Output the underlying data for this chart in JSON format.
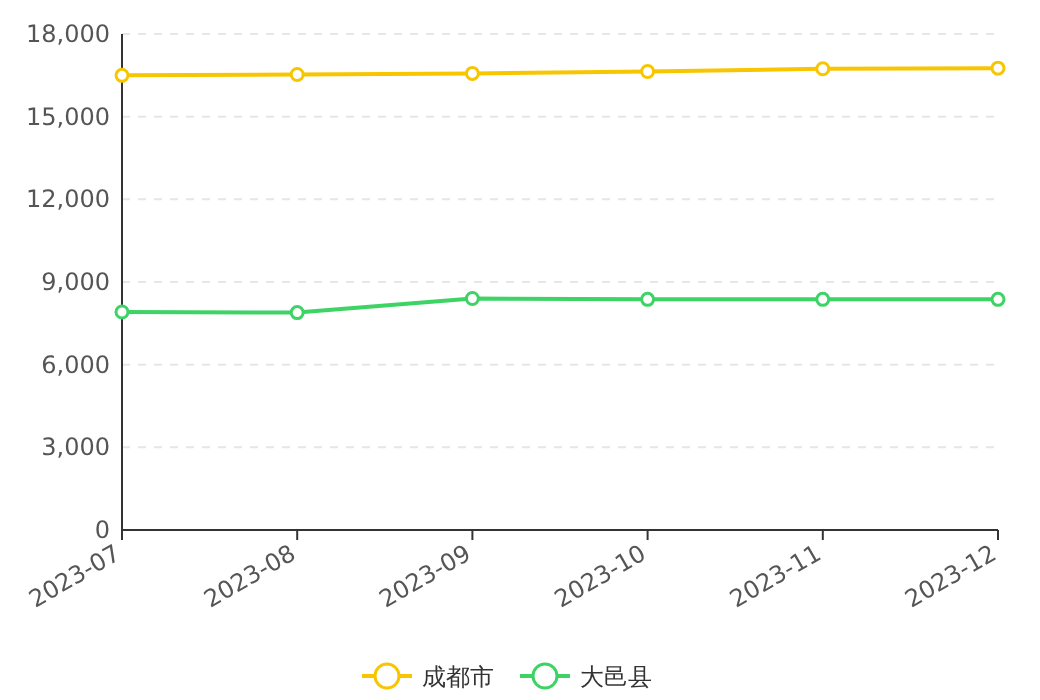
{
  "chart_data": {
    "type": "line",
    "categories": [
      "2023-07",
      "2023-08",
      "2023-09",
      "2023-10",
      "2023-11",
      "2023-12"
    ],
    "series": [
      {
        "name": "成都市",
        "color": "#f7c600",
        "values": [
          16500,
          16530,
          16570,
          16640,
          16740,
          16760
        ]
      },
      {
        "name": "大邑县",
        "color": "#3dd365",
        "values": [
          7910,
          7890,
          8400,
          8370,
          8370,
          8370
        ]
      }
    ],
    "ylim": [
      0,
      18000
    ],
    "yticks": [
      {
        "value": 0,
        "label": "0"
      },
      {
        "value": 3000,
        "label": "3,000"
      },
      {
        "value": 6000,
        "label": "6,000"
      },
      {
        "value": 9000,
        "label": "9,000"
      },
      {
        "value": 12000,
        "label": "12,000"
      },
      {
        "value": 15000,
        "label": "15,000"
      },
      {
        "value": 18000,
        "label": "18,000"
      }
    ],
    "grid": "y",
    "legend": "bottom",
    "marker": "circle",
    "line_style": "solid"
  }
}
